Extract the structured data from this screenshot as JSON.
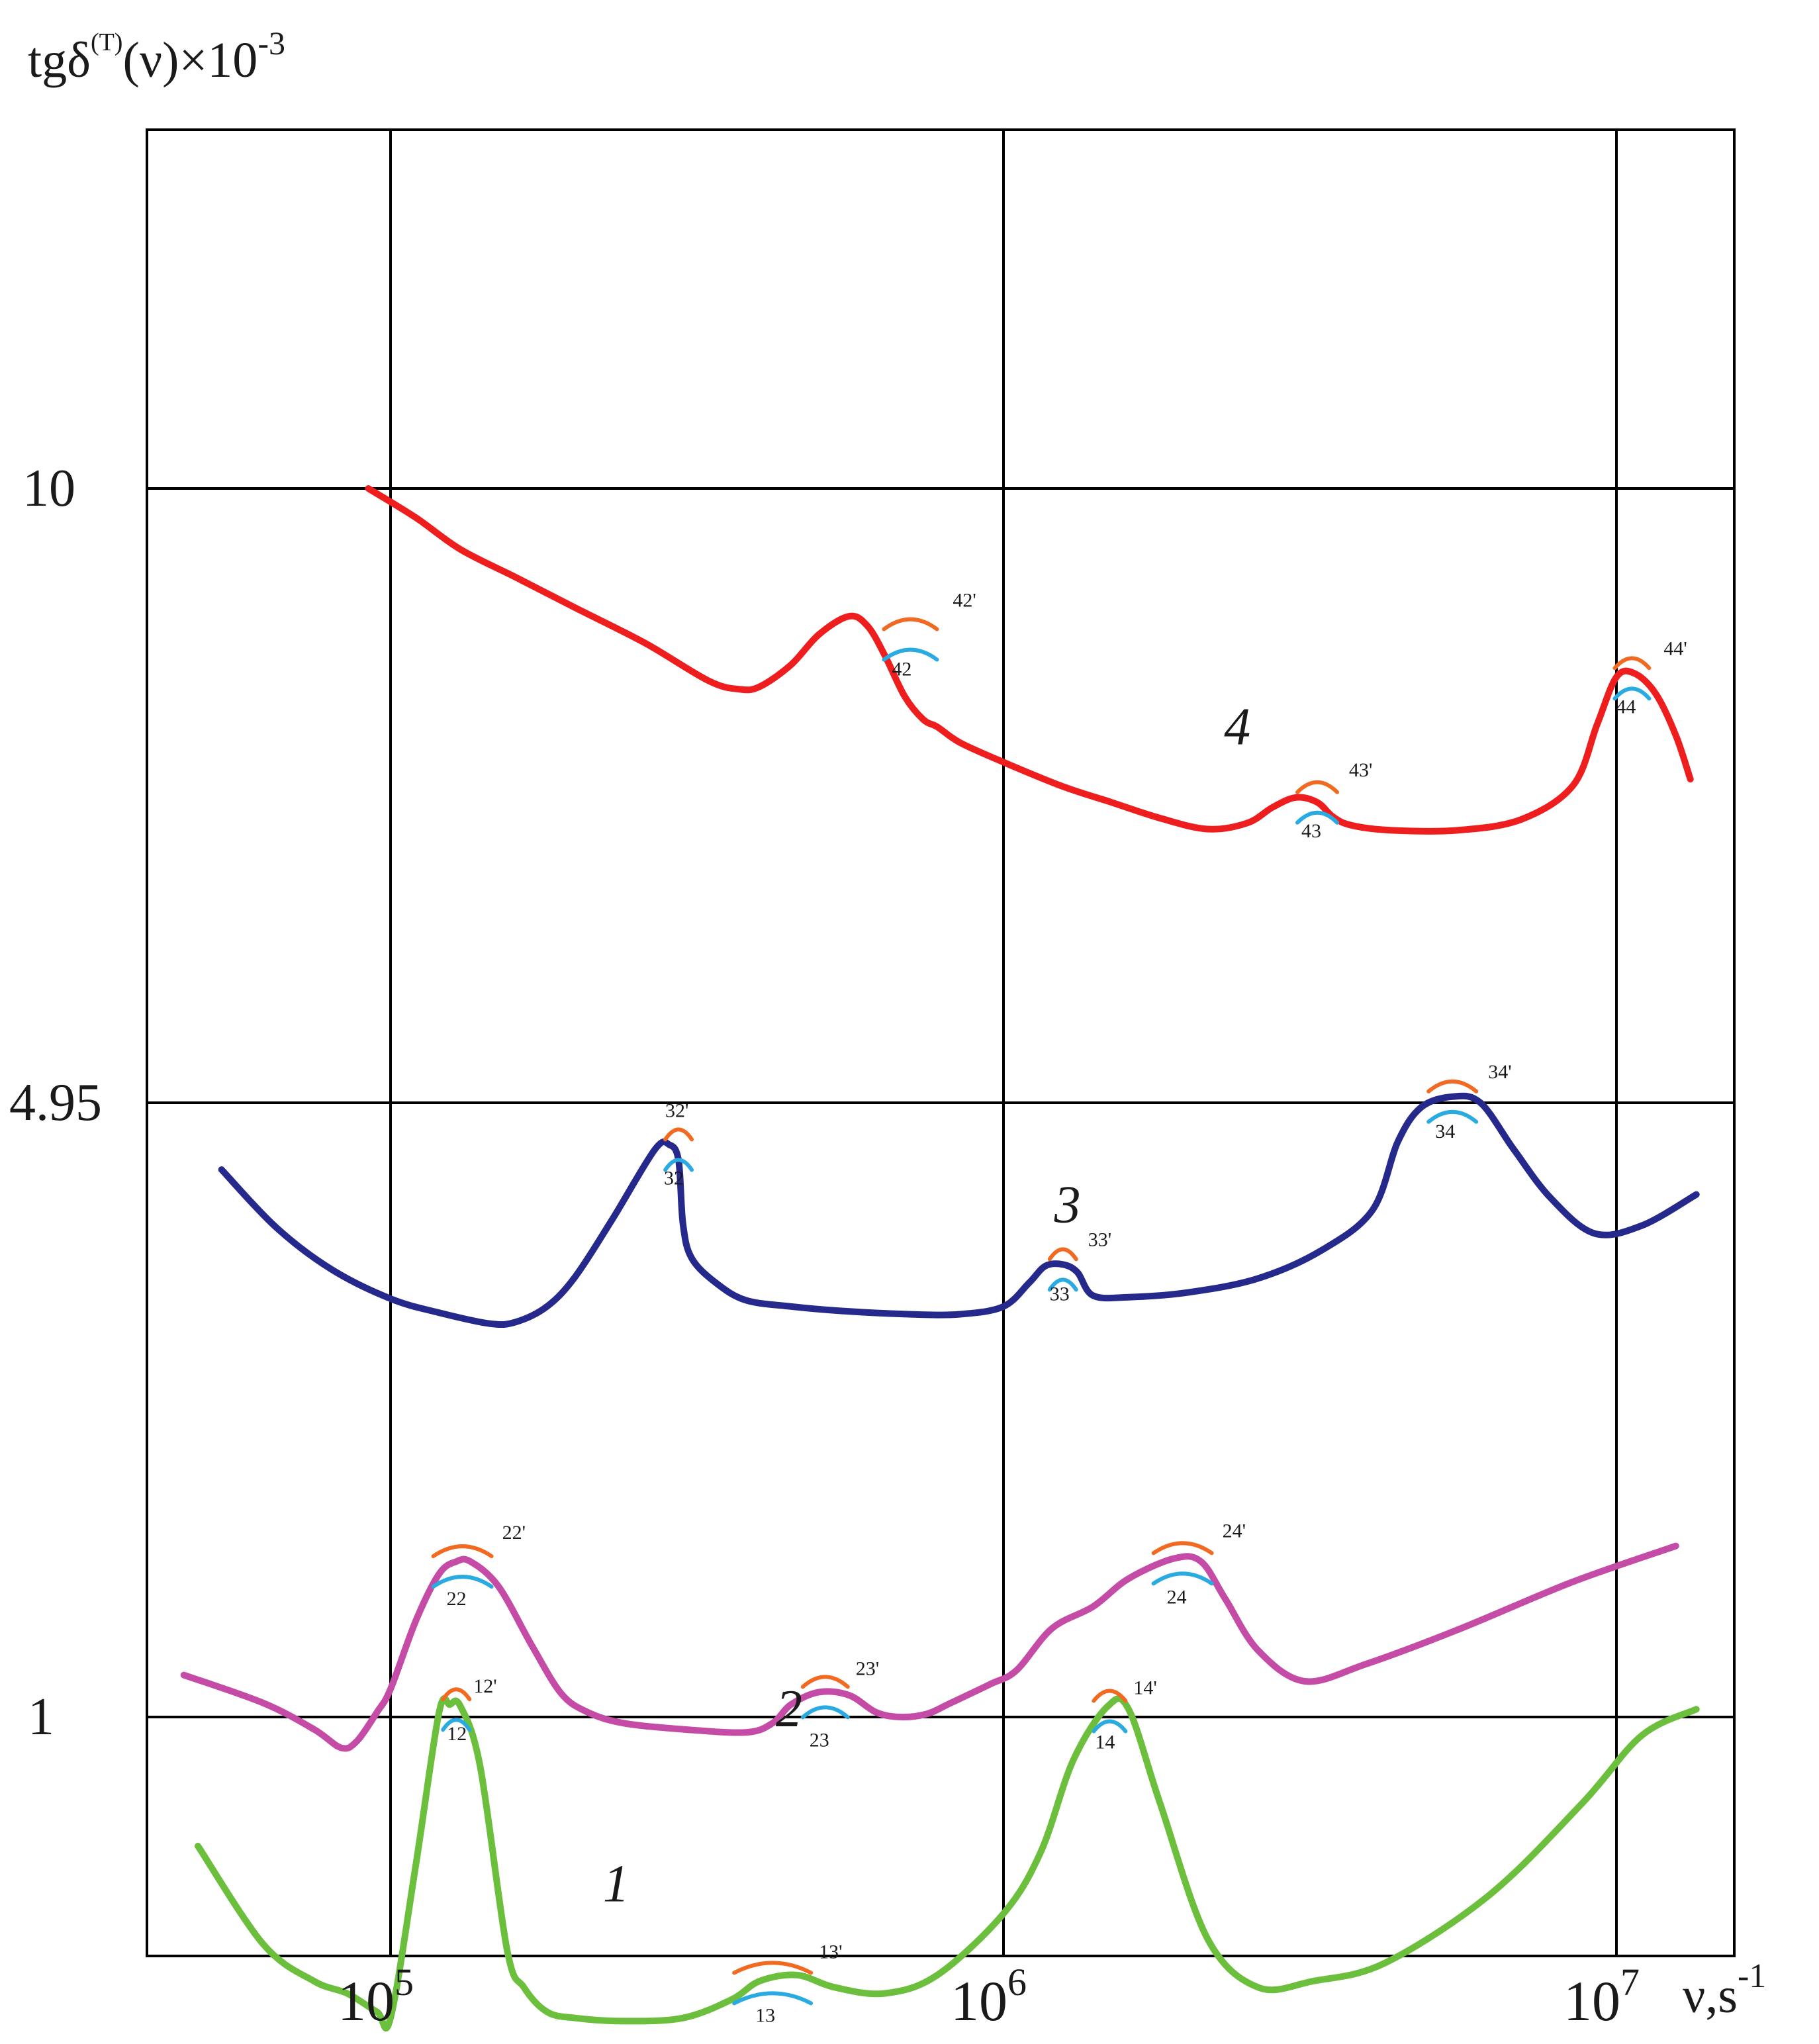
{
  "chart_data": {
    "type": "line",
    "ylabel": "tgδ(T)(ν)×10-3",
    "ylabel_parts": {
      "main": "tgδ",
      "sup_T": "(T)",
      "rest": "(ν)×10",
      "sup_exp": "-3"
    },
    "xlabel": "ν,s-1",
    "xlabel_parts": {
      "main": "ν,s",
      "sup": "-1"
    },
    "x_scale": "log",
    "x_ticks": [
      {
        "value": 100000,
        "base": "10",
        "exp": "5"
      },
      {
        "value": 1000000,
        "base": "10",
        "exp": "6"
      },
      {
        "value": 10000000,
        "base": "10",
        "exp": "7"
      }
    ],
    "y_ticks": [
      "10",
      "4.95",
      "1"
    ],
    "grid": true,
    "series": [
      {
        "name": "1",
        "color": "#6cbf3c",
        "x": [
          48500,
          62000,
          75000,
          85000,
          95000,
          100000,
          110000,
          120000,
          125000,
          130000,
          140000,
          155000,
          165000,
          180000,
          200000,
          240000,
          300000,
          360000,
          400000,
          460000,
          530000,
          640000,
          780000,
          1000000,
          1150000,
          1300000,
          1480000,
          1600000,
          1800000,
          2150000,
          2600000,
          3200000,
          4200000,
          6200000,
          8800000,
          11000000,
          13500000
        ],
        "y": [
          0.79,
          0.63,
          0.57,
          0.55,
          0.52,
          0.51,
          0.76,
          1.03,
          1.08,
          1.07,
          0.92,
          0.62,
          0.56,
          0.52,
          0.51,
          0.505,
          0.51,
          0.54,
          0.57,
          0.58,
          0.56,
          0.55,
          0.58,
          0.68,
          0.78,
          0.93,
          1.07,
          1.05,
          0.86,
          0.64,
          0.56,
          0.57,
          0.6,
          0.71,
          0.86,
          0.97,
          1.05
        ]
      },
      {
        "name": "2",
        "color": "#c44ca6",
        "x": [
          46000,
          62000,
          75000,
          83000,
          88000,
          95000,
          100000,
          110000,
          120000,
          128000,
          135000,
          150000,
          170000,
          190000,
          210000,
          240000,
          300000,
          380000,
          420000,
          450000,
          500000,
          560000,
          620000,
          680000,
          750000,
          820000,
          950000,
          1050000,
          1200000,
          1400000,
          1600000,
          1900000,
          2100000,
          2300000,
          2600000,
          3100000,
          3900000,
          5500000,
          8500000,
          12500000
        ],
        "y": [
          1.27,
          1.09,
          0.98,
          0.95,
          0.96,
          1.03,
          1.18,
          1.62,
          1.92,
          2.0,
          2.0,
          1.84,
          1.46,
          1.15,
          1.03,
          0.99,
          0.98,
          0.975,
          0.99,
          1.08,
          1.16,
          1.14,
          1.03,
          1.0,
          1.02,
          1.09,
          1.21,
          1.3,
          1.57,
          1.71,
          1.89,
          2.02,
          2.0,
          1.76,
          1.43,
          1.23,
          1.34,
          1.56,
          1.87,
          2.1
        ]
      },
      {
        "name": "3",
        "color": "#26298c",
        "x": [
          53000,
          65000,
          80000,
          100000,
          120000,
          145000,
          160000,
          180000,
          200000,
          230000,
          270000,
          285000,
          295000,
          300000,
          310000,
          340000,
          380000,
          450000,
          550000,
          700000,
          850000,
          1000000,
          1100000,
          1170000,
          1250000,
          1320000,
          1400000,
          1600000,
          2000000,
          2600000,
          3300000,
          4000000,
          4400000,
          4800000,
          5400000,
          6000000,
          6800000,
          7800000,
          9200000,
          11000000,
          13500000
        ],
        "y": [
          4.52,
          4.15,
          3.88,
          3.69,
          3.6,
          3.53,
          3.54,
          3.64,
          3.83,
          4.2,
          4.65,
          4.68,
          4.58,
          4.17,
          3.95,
          3.79,
          3.68,
          3.64,
          3.61,
          3.59,
          3.59,
          3.64,
          3.79,
          3.9,
          3.91,
          3.86,
          3.71,
          3.7,
          3.73,
          3.82,
          4.0,
          4.26,
          4.7,
          4.92,
          5.0,
          4.95,
          4.65,
          4.34,
          4.11,
          4.16,
          4.36
        ]
      },
      {
        "name": "4",
        "color": "#ee1e1e",
        "x": [
          92000,
          110000,
          130000,
          160000,
          200000,
          260000,
          330000,
          370000,
          400000,
          450000,
          500000,
          560000,
          600000,
          640000,
          690000,
          740000,
          780000,
          850000,
          1000000,
          1250000,
          1500000,
          1800000,
          2150000,
          2500000,
          2750000,
          3000000,
          3250000,
          3450000,
          3700000,
          4300000,
          5500000,
          7000000,
          8500000,
          9300000,
          10000000,
          10700000,
          11600000,
          12500000,
          13200000
        ],
        "y": [
          10.0,
          9.76,
          9.5,
          9.27,
          9.02,
          8.73,
          8.42,
          8.35,
          8.37,
          8.55,
          8.8,
          8.95,
          8.87,
          8.63,
          8.29,
          8.1,
          8.04,
          7.91,
          7.75,
          7.55,
          7.42,
          7.29,
          7.2,
          7.25,
          7.38,
          7.46,
          7.42,
          7.3,
          7.23,
          7.19,
          7.19,
          7.28,
          7.56,
          8.06,
          8.45,
          8.48,
          8.31,
          7.97,
          7.61
        ]
      }
    ],
    "annotations": [
      "12'",
      "12",
      "13'",
      "13",
      "14'",
      "14",
      "22'",
      "22",
      "23'",
      "23",
      "24'",
      "24",
      "32'",
      "32",
      "33'",
      "33",
      "34'",
      "34",
      "42'",
      "42",
      "43'",
      "43",
      "44'",
      "44"
    ],
    "annotation_colors": {
      "primed": "#f26a21",
      "unprimed": "#29abe2"
    }
  }
}
